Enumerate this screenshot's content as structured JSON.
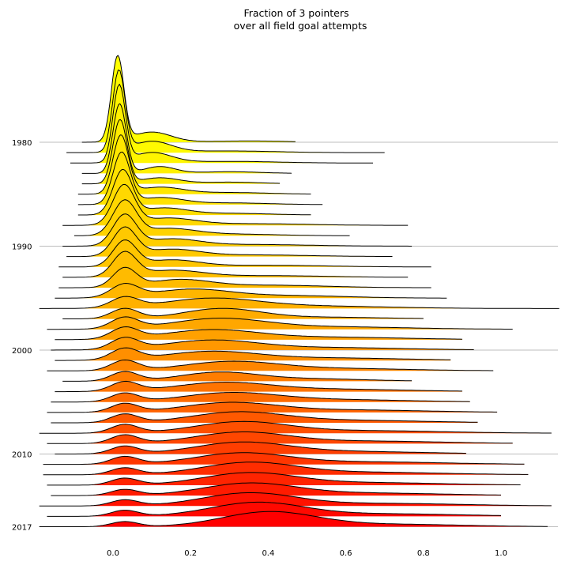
{
  "chart_data": {
    "type": "ridgeline",
    "title": [
      "Fraction of 3 pointers",
      "over all field goal attempts"
    ],
    "xlabel": "",
    "ylabel": "",
    "xticks": [
      0.0,
      0.2,
      0.4,
      0.6,
      0.8,
      1.0
    ],
    "xtick_labels": [
      "0.0",
      "0.2",
      "0.4",
      "0.6",
      "0.8",
      "1.0"
    ],
    "xlim": [
      -0.19,
      1.15
    ],
    "yticks": [
      1980,
      1990,
      2000,
      2010,
      2017
    ],
    "ytick_labels": [
      "1980",
      "1990",
      "2000",
      "2010",
      "2017"
    ],
    "grid": "horizontal at labeled years",
    "colormap": [
      "#ffff00",
      "#ffa500",
      "#ff0000"
    ],
    "series": [
      {
        "year": 1980,
        "xmin": -0.08,
        "xmax": 0.47,
        "components": [
          [
            0.012,
            0.016,
            1.0
          ],
          [
            0.1,
            0.05,
            0.12
          ],
          [
            0.35,
            0.1,
            0.015
          ]
        ]
      },
      {
        "year": 1981,
        "xmin": -0.12,
        "xmax": 0.7,
        "components": [
          [
            0.015,
            0.016,
            0.95
          ],
          [
            0.1,
            0.05,
            0.13
          ],
          [
            0.3,
            0.12,
            0.02
          ]
        ]
      },
      {
        "year": 1982,
        "xmin": -0.11,
        "xmax": 0.67,
        "components": [
          [
            0.016,
            0.016,
            0.9
          ],
          [
            0.1,
            0.05,
            0.12
          ],
          [
            0.3,
            0.12,
            0.02
          ]
        ]
      },
      {
        "year": 1983,
        "xmin": -0.08,
        "xmax": 0.46,
        "components": [
          [
            0.017,
            0.017,
            0.82
          ],
          [
            0.12,
            0.04,
            0.08
          ],
          [
            0.3,
            0.08,
            0.02
          ]
        ]
      },
      {
        "year": 1984,
        "xmin": -0.08,
        "xmax": 0.43,
        "components": [
          [
            0.018,
            0.018,
            0.75
          ],
          [
            0.12,
            0.05,
            0.07
          ],
          [
            0.3,
            0.08,
            0.02
          ]
        ]
      },
      {
        "year": 1985,
        "xmin": -0.09,
        "xmax": 0.51,
        "components": [
          [
            0.02,
            0.02,
            0.68
          ],
          [
            0.12,
            0.06,
            0.08
          ],
          [
            0.3,
            0.1,
            0.02
          ]
        ]
      },
      {
        "year": 1986,
        "xmin": -0.09,
        "xmax": 0.54,
        "components": [
          [
            0.022,
            0.022,
            0.6
          ],
          [
            0.12,
            0.06,
            0.08
          ],
          [
            0.3,
            0.1,
            0.02
          ]
        ]
      },
      {
        "year": 1987,
        "xmin": -0.09,
        "xmax": 0.51,
        "components": [
          [
            0.025,
            0.025,
            0.52
          ],
          [
            0.13,
            0.06,
            0.08
          ],
          [
            0.3,
            0.1,
            0.02
          ]
        ]
      },
      {
        "year": 1988,
        "xmin": -0.13,
        "xmax": 0.76,
        "components": [
          [
            0.028,
            0.028,
            0.46
          ],
          [
            0.14,
            0.07,
            0.08
          ],
          [
            0.35,
            0.15,
            0.02
          ]
        ]
      },
      {
        "year": 1989,
        "xmin": -0.1,
        "xmax": 0.61,
        "components": [
          [
            0.03,
            0.03,
            0.4
          ],
          [
            0.14,
            0.07,
            0.08
          ],
          [
            0.3,
            0.12,
            0.02
          ]
        ]
      },
      {
        "year": 1990,
        "xmin": -0.13,
        "xmax": 0.77,
        "components": [
          [
            0.03,
            0.03,
            0.36
          ],
          [
            0.15,
            0.07,
            0.08
          ],
          [
            0.35,
            0.15,
            0.02
          ]
        ]
      },
      {
        "year": 1991,
        "xmin": -0.12,
        "xmax": 0.72,
        "components": [
          [
            0.03,
            0.03,
            0.33
          ],
          [
            0.15,
            0.07,
            0.08
          ],
          [
            0.35,
            0.15,
            0.02
          ]
        ]
      },
      {
        "year": 1992,
        "xmin": -0.14,
        "xmax": 0.82,
        "components": [
          [
            0.03,
            0.03,
            0.3
          ],
          [
            0.15,
            0.07,
            0.08
          ],
          [
            0.4,
            0.15,
            0.02
          ]
        ]
      },
      {
        "year": 1993,
        "xmin": -0.13,
        "xmax": 0.76,
        "components": [
          [
            0.03,
            0.03,
            0.28
          ],
          [
            0.15,
            0.08,
            0.08
          ],
          [
            0.4,
            0.15,
            0.02
          ]
        ]
      },
      {
        "year": 1994,
        "xmin": -0.14,
        "xmax": 0.82,
        "components": [
          [
            0.03,
            0.03,
            0.22
          ],
          [
            0.17,
            0.08,
            0.09
          ],
          [
            0.4,
            0.15,
            0.03
          ]
        ]
      },
      {
        "year": 1995,
        "xmin": -0.15,
        "xmax": 0.86,
        "components": [
          [
            0.03,
            0.035,
            0.15
          ],
          [
            0.2,
            0.1,
            0.1
          ],
          [
            0.45,
            0.15,
            0.03
          ]
        ]
      },
      {
        "year": 1996,
        "xmin": -0.19,
        "xmax": 1.15,
        "components": [
          [
            0.03,
            0.035,
            0.12
          ],
          [
            0.25,
            0.12,
            0.11
          ],
          [
            0.5,
            0.2,
            0.03
          ]
        ]
      },
      {
        "year": 1997,
        "xmin": -0.13,
        "xmax": 0.8,
        "components": [
          [
            0.03,
            0.035,
            0.12
          ],
          [
            0.28,
            0.1,
            0.12
          ],
          [
            0.55,
            0.15,
            0.02
          ]
        ]
      },
      {
        "year": 1998,
        "xmin": -0.17,
        "xmax": 1.03,
        "components": [
          [
            0.03,
            0.035,
            0.13
          ],
          [
            0.27,
            0.12,
            0.12
          ],
          [
            0.55,
            0.2,
            0.03
          ]
        ]
      },
      {
        "year": 1999,
        "xmin": -0.15,
        "xmax": 0.9,
        "components": [
          [
            0.03,
            0.035,
            0.13
          ],
          [
            0.25,
            0.12,
            0.11
          ],
          [
            0.55,
            0.2,
            0.03
          ]
        ]
      },
      {
        "year": 2000,
        "xmin": -0.16,
        "xmax": 0.93,
        "components": [
          [
            0.03,
            0.035,
            0.13
          ],
          [
            0.25,
            0.12,
            0.11
          ],
          [
            0.55,
            0.2,
            0.03
          ]
        ]
      },
      {
        "year": 2001,
        "xmin": -0.15,
        "xmax": 0.87,
        "components": [
          [
            0.03,
            0.035,
            0.13
          ],
          [
            0.25,
            0.12,
            0.1
          ],
          [
            0.55,
            0.2,
            0.03
          ]
        ]
      },
      {
        "year": 2002,
        "xmin": -0.17,
        "xmax": 0.98,
        "components": [
          [
            0.03,
            0.035,
            0.12
          ],
          [
            0.3,
            0.12,
            0.1
          ],
          [
            0.55,
            0.2,
            0.03
          ]
        ]
      },
      {
        "year": 2003,
        "xmin": -0.13,
        "xmax": 0.77,
        "components": [
          [
            0.03,
            0.035,
            0.11
          ],
          [
            0.27,
            0.1,
            0.1
          ],
          [
            0.5,
            0.15,
            0.03
          ]
        ]
      },
      {
        "year": 2004,
        "xmin": -0.15,
        "xmax": 0.9,
        "components": [
          [
            0.03,
            0.035,
            0.11
          ],
          [
            0.28,
            0.12,
            0.1
          ],
          [
            0.55,
            0.2,
            0.03
          ]
        ]
      },
      {
        "year": 2005,
        "xmin": -0.16,
        "xmax": 0.92,
        "components": [
          [
            0.03,
            0.035,
            0.1
          ],
          [
            0.3,
            0.12,
            0.1
          ],
          [
            0.55,
            0.2,
            0.03
          ]
        ]
      },
      {
        "year": 2006,
        "xmin": -0.17,
        "xmax": 0.99,
        "components": [
          [
            0.03,
            0.035,
            0.1
          ],
          [
            0.3,
            0.12,
            0.11
          ],
          [
            0.6,
            0.2,
            0.03
          ]
        ]
      },
      {
        "year": 2007,
        "xmin": -0.16,
        "xmax": 0.94,
        "components": [
          [
            0.03,
            0.035,
            0.1
          ],
          [
            0.32,
            0.12,
            0.12
          ],
          [
            0.6,
            0.2,
            0.03
          ]
        ]
      },
      {
        "year": 2008,
        "xmin": -0.19,
        "xmax": 1.13,
        "components": [
          [
            0.03,
            0.035,
            0.1
          ],
          [
            0.33,
            0.12,
            0.13
          ],
          [
            0.65,
            0.2,
            0.03
          ]
        ]
      },
      {
        "year": 2009,
        "xmin": -0.17,
        "xmax": 1.03,
        "components": [
          [
            0.03,
            0.035,
            0.1
          ],
          [
            0.33,
            0.12,
            0.13
          ],
          [
            0.65,
            0.2,
            0.03
          ]
        ]
      },
      {
        "year": 2010,
        "xmin": -0.15,
        "xmax": 0.91,
        "components": [
          [
            0.03,
            0.035,
            0.09
          ],
          [
            0.33,
            0.12,
            0.13
          ],
          [
            0.6,
            0.2,
            0.03
          ]
        ]
      },
      {
        "year": 2011,
        "xmin": -0.18,
        "xmax": 1.06,
        "components": [
          [
            0.03,
            0.035,
            0.09
          ],
          [
            0.33,
            0.12,
            0.13
          ],
          [
            0.65,
            0.2,
            0.03
          ]
        ]
      },
      {
        "year": 2012,
        "xmin": -0.18,
        "xmax": 1.07,
        "components": [
          [
            0.03,
            0.035,
            0.08
          ],
          [
            0.35,
            0.12,
            0.14
          ],
          [
            0.65,
            0.2,
            0.03
          ]
        ]
      },
      {
        "year": 2013,
        "xmin": -0.17,
        "xmax": 1.05,
        "components": [
          [
            0.03,
            0.035,
            0.08
          ],
          [
            0.35,
            0.12,
            0.14
          ],
          [
            0.65,
            0.2,
            0.03
          ]
        ]
      },
      {
        "year": 2014,
        "xmin": -0.16,
        "xmax": 1.0,
        "components": [
          [
            0.03,
            0.035,
            0.07
          ],
          [
            0.35,
            0.12,
            0.14
          ],
          [
            0.65,
            0.2,
            0.03
          ]
        ]
      },
      {
        "year": 2015,
        "xmin": -0.19,
        "xmax": 1.13,
        "components": [
          [
            0.03,
            0.035,
            0.07
          ],
          [
            0.35,
            0.12,
            0.15
          ],
          [
            0.7,
            0.2,
            0.03
          ]
        ]
      },
      {
        "year": 2016,
        "xmin": -0.17,
        "xmax": 1.0,
        "components": [
          [
            0.03,
            0.035,
            0.07
          ],
          [
            0.37,
            0.12,
            0.16
          ],
          [
            0.7,
            0.2,
            0.03
          ]
        ]
      },
      {
        "year": 2017,
        "xmin": -0.19,
        "xmax": 1.12,
        "components": [
          [
            0.03,
            0.035,
            0.06
          ],
          [
            0.4,
            0.12,
            0.17
          ],
          [
            0.7,
            0.2,
            0.03
          ]
        ]
      }
    ]
  }
}
